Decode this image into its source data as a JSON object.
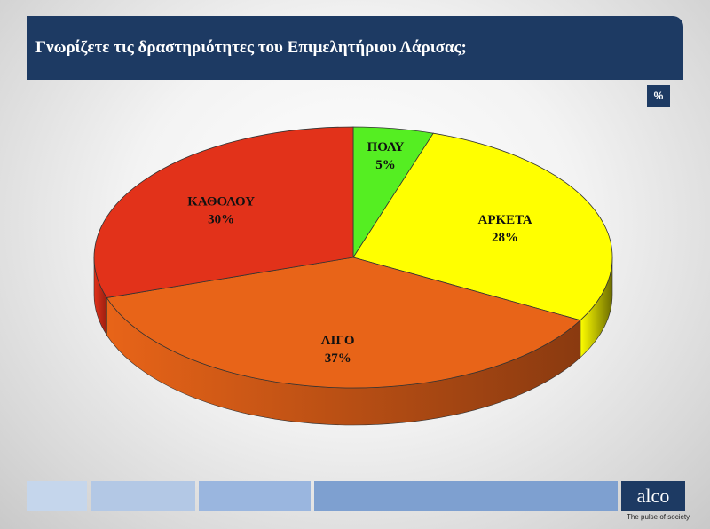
{
  "header": {
    "title": "Γνωρίζετε τις δραστηριότητες του Επιμελητήριου Λάρισας;"
  },
  "unit_badge": "%",
  "chart_data": {
    "type": "pie",
    "title": "Γνωρίζετε τις δραστηριότητες του Επιμελητήριου Λάρισας;",
    "unit": "%",
    "three_d": true,
    "slices": [
      {
        "label": "ΠΟΛΥ",
        "value": 5,
        "value_label": "5%",
        "color": "#55ee22",
        "side_color": "#2f9a12"
      },
      {
        "label": "ΑΡΚΕΤΑ",
        "value": 28,
        "value_label": "28%",
        "color": "#ffff00",
        "side_color": "#6b6b00"
      },
      {
        "label": "ΛΙΓΟ",
        "value": 37,
        "value_label": "37%",
        "color": "#e86418",
        "side_color": "#8a3a10"
      },
      {
        "label": "ΚΑΘΟΛΟΥ",
        "value": 30,
        "value_label": "30%",
        "color": "#e2321a",
        "side_color": "#9a1e10"
      }
    ]
  },
  "footer": {
    "logo": "alco",
    "tagline": "The pulse of society",
    "bar_colors": [
      "#c5d6ec",
      "#b3c8e5",
      "#9ab6df",
      "#7ea0d0"
    ]
  }
}
